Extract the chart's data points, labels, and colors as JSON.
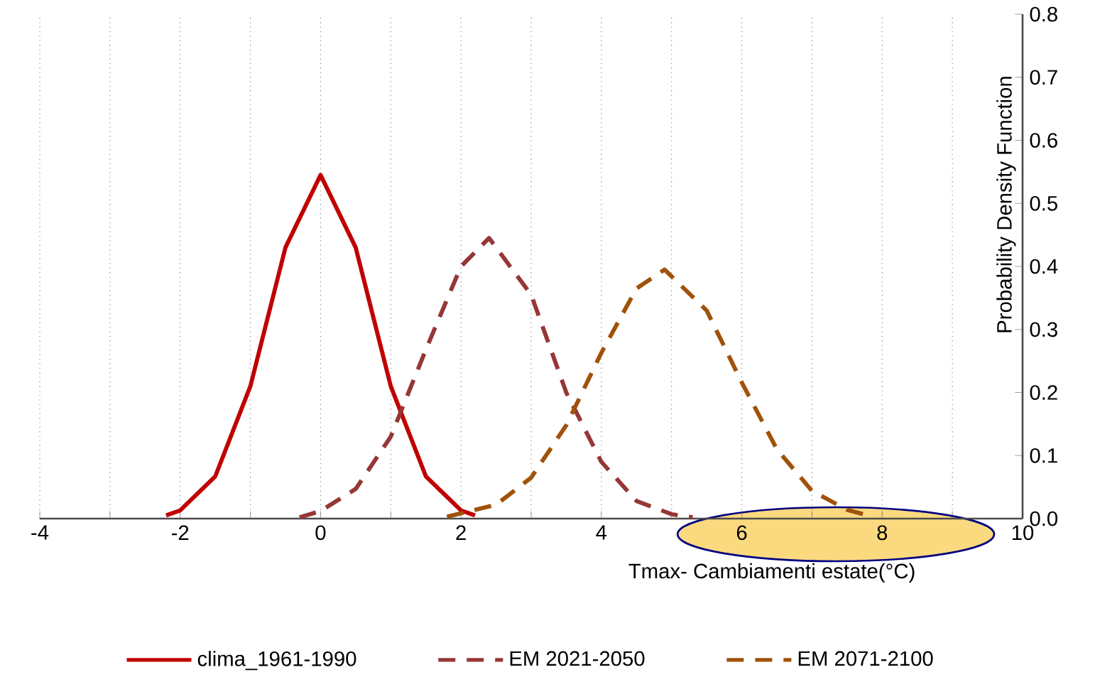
{
  "chart_data": {
    "type": "line",
    "xlabel": "Tmax-  Cambiamenti estate(°C)",
    "ylabel": "Probability Density Function",
    "xlim": [
      -4,
      10
    ],
    "xticks": [
      -4,
      {
        "value": -3,
        "label": null
      },
      -2,
      {
        "value": -1,
        "label": null
      },
      0,
      {
        "value": 1,
        "label": null
      },
      2,
      {
        "value": 3,
        "label": null
      },
      4,
      {
        "value": 5,
        "label": null
      },
      6,
      {
        "value": 7,
        "label": null
      },
      8,
      {
        "value": 9,
        "label": null
      },
      10
    ],
    "ylim": [
      0,
      0.8
    ],
    "yticks": [
      {
        "value": 0,
        "label": "0.0"
      },
      0.1,
      0.2,
      0.3,
      0.4,
      0.5,
      0.6,
      0.7,
      0.8
    ],
    "grid": "x",
    "legend": "bottom",
    "marker": "none",
    "series": [
      {
        "name": "clima_1961-1990",
        "color": "#c00000",
        "line_style": "solid",
        "x": [
          -2.2,
          -2,
          -1.5,
          -1,
          -0.5,
          0,
          0.5,
          1,
          1.5,
          2,
          2.2
        ],
        "values": [
          0.005,
          0.013,
          0.067,
          0.21,
          0.43,
          0.545,
          0.43,
          0.21,
          0.067,
          0.013,
          0.005
        ]
      },
      {
        "name": "EM 2021-2050",
        "color": "#953735",
        "line_style": "dashed",
        "x": [
          -0.3,
          0,
          0.5,
          1,
          1.5,
          2,
          2.4,
          3,
          3.5,
          4,
          4.5,
          5,
          5.3
        ],
        "values": [
          0.002,
          0.012,
          0.047,
          0.13,
          0.268,
          0.4,
          0.445,
          0.355,
          0.2,
          0.09,
          0.028,
          0.007,
          0.002
        ]
      },
      {
        "name": "EM 2071-2100",
        "color": "#a0520a",
        "line_style": "dashed",
        "x": [
          1.8,
          2.5,
          3,
          3.5,
          4,
          4.5,
          4.9,
          5.5,
          6,
          6.5,
          7,
          7.5,
          7.8
        ],
        "values": [
          0.003,
          0.022,
          0.065,
          0.148,
          0.263,
          0.365,
          0.395,
          0.33,
          0.216,
          0.11,
          0.044,
          0.014,
          0.005
        ]
      }
    ]
  }
}
